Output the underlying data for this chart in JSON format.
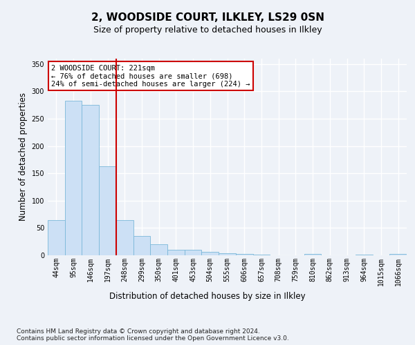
{
  "title1": "2, WOODSIDE COURT, ILKLEY, LS29 0SN",
  "title2": "Size of property relative to detached houses in Ilkley",
  "xlabel": "Distribution of detached houses by size in Ilkley",
  "ylabel": "Number of detached properties",
  "bins": [
    "44sqm",
    "95sqm",
    "146sqm",
    "197sqm",
    "248sqm",
    "299sqm",
    "350sqm",
    "401sqm",
    "453sqm",
    "504sqm",
    "555sqm",
    "606sqm",
    "657sqm",
    "708sqm",
    "759sqm",
    "810sqm",
    "862sqm",
    "913sqm",
    "964sqm",
    "1015sqm",
    "1066sqm"
  ],
  "values": [
    65,
    283,
    275,
    163,
    65,
    35,
    20,
    10,
    10,
    6,
    4,
    2,
    1,
    0,
    0,
    2,
    0,
    0,
    1,
    0,
    2
  ],
  "bar_color": "#cce0f5",
  "bar_edge_color": "#7ab8d9",
  "vline_color": "#cc0000",
  "vline_x_idx": 3,
  "annotation_text": "2 WOODSIDE COURT: 221sqm\n← 76% of detached houses are smaller (698)\n24% of semi-detached houses are larger (224) →",
  "annotation_box_color": "#ffffff",
  "annotation_box_edge": "#cc0000",
  "ylim": [
    0,
    360
  ],
  "yticks": [
    0,
    50,
    100,
    150,
    200,
    250,
    300,
    350
  ],
  "footnote": "Contains HM Land Registry data © Crown copyright and database right 2024.\nContains public sector information licensed under the Open Government Licence v3.0.",
  "bg_color": "#eef2f8",
  "grid_color": "#ffffff",
  "title1_fontsize": 11,
  "title2_fontsize": 9,
  "axis_label_fontsize": 8.5,
  "tick_fontsize": 7,
  "annotation_fontsize": 7.5,
  "footnote_fontsize": 6.5
}
